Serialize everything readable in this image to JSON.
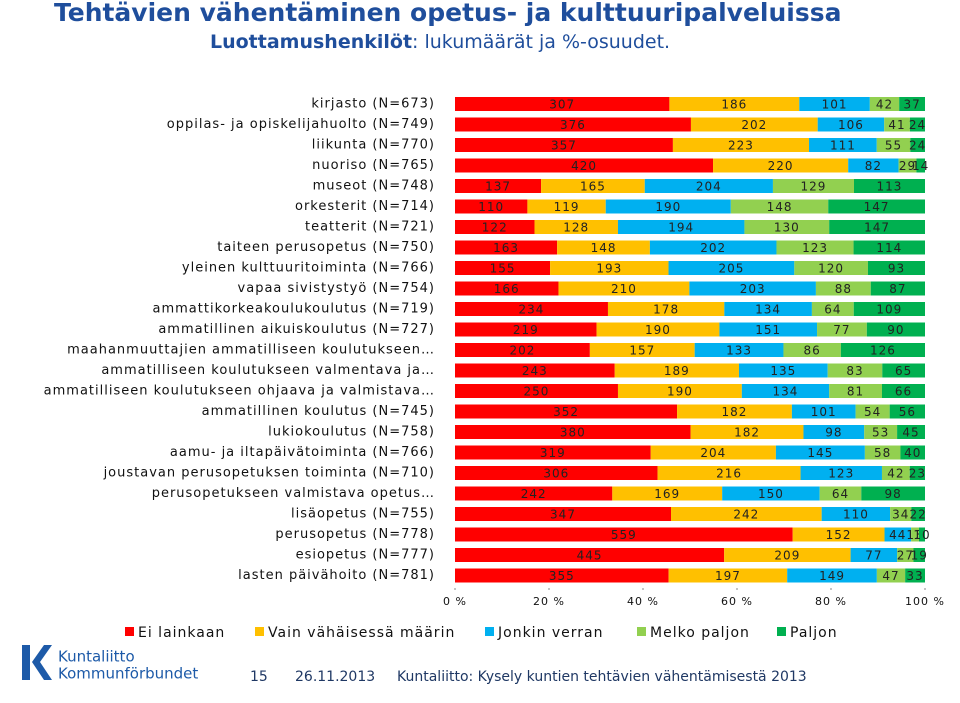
{
  "chart_data": {
    "type": "stacked-bar-100",
    "title": "Tehtävien vähentäminen opetus- ja kulttuuripalveluissa",
    "subtitle_bold": "Luottamushenkilöt",
    "subtitle_rest": ": lukumäärät ja %-osuudet.",
    "categories": [
      "kirjasto (N=673)",
      "oppilas- ja opiskelijahuolto (N=749)",
      "liikunta (N=770)",
      "nuoriso (N=765)",
      "museot (N=748)",
      "orkesterit (N=714)",
      "teatterit (N=721)",
      "taiteen perusopetus (N=750)",
      "yleinen kulttuuritoiminta (N=766)",
      "vapaa sivistystyö (N=754)",
      "ammattikorkeakoulukoulutus (N=719)",
      "ammatillinen aikuiskoulutus (N=727)",
      "maahanmuuttajien ammatilliseen koulutukseen…",
      "ammatilliseen koulutukseen valmentava ja…",
      "ammatilliseen koulutukseen ohjaava ja valmistava…",
      "ammatillinen koulutus (N=745)",
      "lukiokoulutus (N=758)",
      "aamu- ja iltapäivätoiminta (N=766)",
      "joustavan perusopetuksen toiminta (N=710)",
      "perusopetukseen valmistava opetus…",
      "lisäopetus (N=755)",
      "perusopetus (N=778)",
      "esiopetus (N=777)",
      "lasten päivähoito (N=781)"
    ],
    "series": [
      {
        "name": "Ei lainkaan",
        "color": "#ff0000",
        "values": [
          307,
          376,
          357,
          420,
          137,
          110,
          122,
          163,
          155,
          166,
          234,
          219,
          202,
          243,
          250,
          352,
          380,
          319,
          306,
          242,
          347,
          559,
          445,
          355
        ]
      },
      {
        "name": "Vain vähäisessä määrin",
        "color": "#ffc000",
        "values": [
          186,
          202,
          223,
          220,
          165,
          119,
          128,
          148,
          193,
          210,
          178,
          190,
          157,
          189,
          190,
          182,
          182,
          204,
          216,
          169,
          242,
          152,
          209,
          197
        ]
      },
      {
        "name": "Jonkin verran",
        "color": "#00b0f0",
        "values": [
          101,
          106,
          111,
          82,
          204,
          190,
          194,
          202,
          205,
          203,
          134,
          151,
          133,
          135,
          134,
          101,
          98,
          145,
          123,
          150,
          110,
          44,
          77,
          149
        ]
      },
      {
        "name": "Melko paljon",
        "color": "#92d050",
        "values": [
          42,
          41,
          55,
          29,
          129,
          148,
          130,
          123,
          120,
          88,
          64,
          77,
          86,
          83,
          81,
          54,
          53,
          58,
          42,
          64,
          34,
          13,
          27,
          47
        ]
      },
      {
        "name": "Paljon",
        "color": "#00b050",
        "values": [
          37,
          24,
          24,
          14,
          113,
          147,
          147,
          114,
          93,
          87,
          109,
          90,
          126,
          65,
          66,
          56,
          45,
          40,
          23,
          98,
          22,
          10,
          19,
          33
        ]
      }
    ],
    "xlim": [
      0,
      100
    ],
    "xticks": [
      {
        "value": 0,
        "label": "0 %"
      },
      {
        "value": 20,
        "label": "20 %"
      },
      {
        "value": 40,
        "label": "40 %"
      },
      {
        "value": 60,
        "label": "60 %"
      },
      {
        "value": 80,
        "label": "80 %"
      },
      {
        "value": 100,
        "label": "100 %"
      }
    ],
    "legend": "bottom"
  },
  "footer": {
    "page": "15",
    "date": "26.11.2013",
    "source": "Kuntaliitto: Kysely kuntien tehtävien vähentämisestä 2013",
    "logo_fi": "Kuntaliitto",
    "logo_sv": "Kommunförbundet"
  }
}
